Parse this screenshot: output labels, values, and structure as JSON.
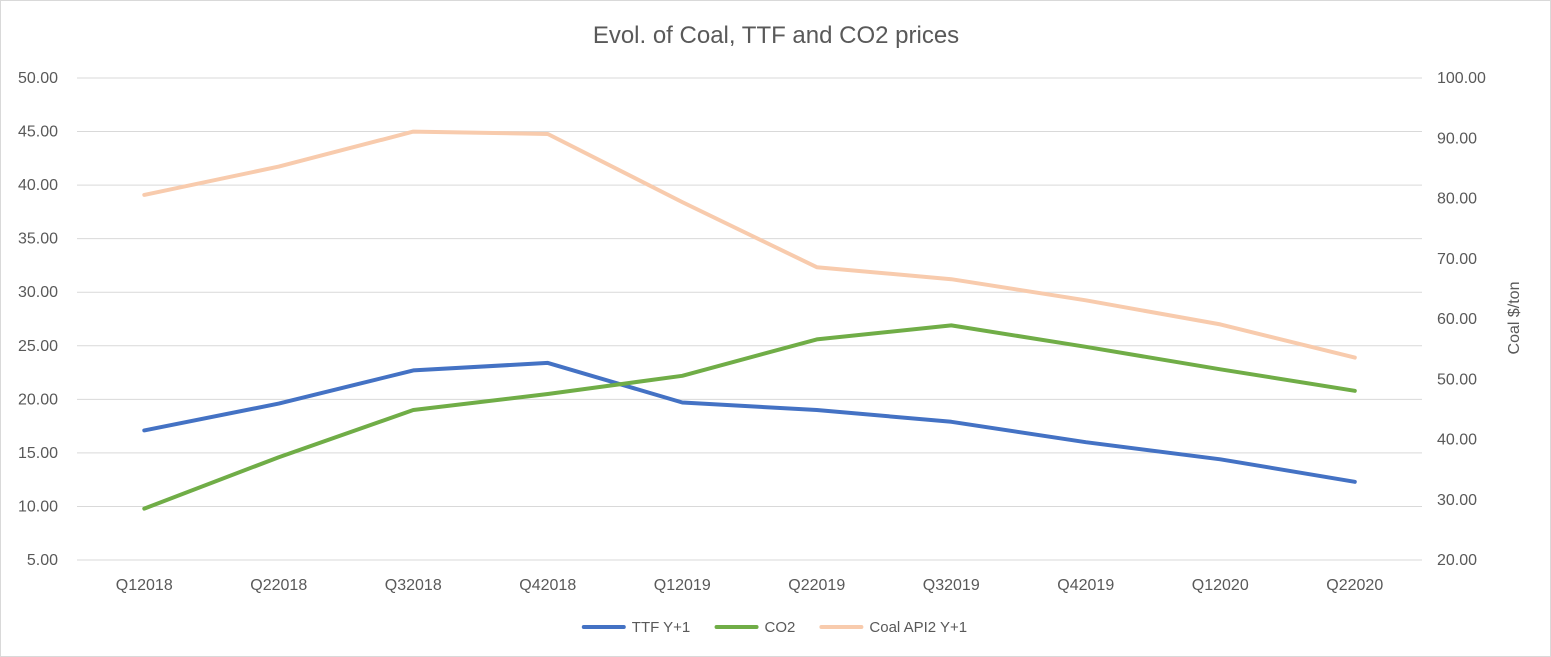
{
  "chart_data": {
    "type": "line",
    "title": "Evol. of Coal, TTF and CO2 prices",
    "categories": [
      "Q12018",
      "Q22018",
      "Q32018",
      "Q42018",
      "Q12019",
      "Q22019",
      "Q32019",
      "Q42019",
      "Q12020",
      "Q22020"
    ],
    "y_left": {
      "ylim": [
        5,
        50
      ],
      "ticks": [
        "5.00",
        "10.00",
        "15.00",
        "20.00",
        "25.00",
        "30.00",
        "35.00",
        "40.00",
        "45.00",
        "50.00"
      ]
    },
    "y_right": {
      "label": "Coal $/ton",
      "ylim": [
        20,
        100
      ],
      "ticks": [
        "20.00",
        "30.00",
        "40.00",
        "50.00",
        "60.00",
        "70.00",
        "80.00",
        "90.00",
        "100.00"
      ]
    },
    "grid": true,
    "legend_position": "bottom",
    "series": [
      {
        "name": "TTF Y+1",
        "axis": "left",
        "color": "#4472c4",
        "values": [
          17.1,
          19.6,
          22.7,
          23.4,
          19.7,
          19.0,
          17.9,
          16.0,
          14.4,
          12.3
        ]
      },
      {
        "name": "CO2",
        "axis": "left",
        "color": "#70ad47",
        "values": [
          9.8,
          14.6,
          19.0,
          20.5,
          22.2,
          25.6,
          26.9,
          24.9,
          22.8,
          20.8
        ]
      },
      {
        "name": "Coal API2 Y+1",
        "axis": "right",
        "color": "#f8cbad",
        "values": [
          80.6,
          85.3,
          91.1,
          90.7,
          79.4,
          68.6,
          66.6,
          63.1,
          59.1,
          53.6
        ]
      }
    ]
  }
}
